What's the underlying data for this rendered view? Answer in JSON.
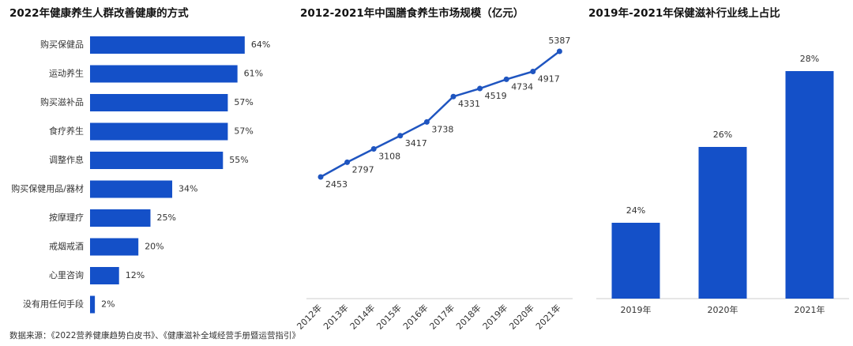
{
  "chart_data": [
    {
      "type": "bar",
      "orientation": "horizontal",
      "title": "2022年健康养生人群改善健康的方式",
      "categories": [
        "购买保健品",
        "运动养生",
        "购买滋补品",
        "食疗养生",
        "调整作息",
        "购买保健用品/器材",
        "按摩理疗",
        "戒烟戒酒",
        "心里咨询",
        "没有用任何手段"
      ],
      "values": [
        64,
        61,
        57,
        57,
        55,
        34,
        25,
        20,
        12,
        2
      ],
      "value_labels": [
        "64%",
        "61%",
        "57%",
        "57%",
        "55%",
        "34%",
        "25%",
        "20%",
        "12%",
        "2%"
      ],
      "color": "#1450c8"
    },
    {
      "type": "line",
      "title": "2012-2021年中国膳食养生市场规模（亿元）",
      "categories": [
        "2012年",
        "2013年",
        "2014年",
        "2015年",
        "2016年",
        "2017年",
        "2018年",
        "2019年",
        "2020年",
        "2021年"
      ],
      "values": [
        2453,
        2797,
        3108,
        3417,
        3738,
        4331,
        4519,
        4734,
        4917,
        5387
      ],
      "color": "#1f55c0"
    },
    {
      "type": "bar",
      "orientation": "vertical",
      "title": "2019年-2021年保健滋补行业线上占比",
      "categories": [
        "2019年",
        "2020年",
        "2021年"
      ],
      "values": [
        24,
        26,
        28
      ],
      "value_labels": [
        "24%",
        "26%",
        "28%"
      ],
      "ylim": [
        22,
        29
      ],
      "color": "#1450c8"
    }
  ],
  "source": "数据来源：《2022营养健康趋势白皮书》、《健康滋补全域经营手册暨运营指引》"
}
